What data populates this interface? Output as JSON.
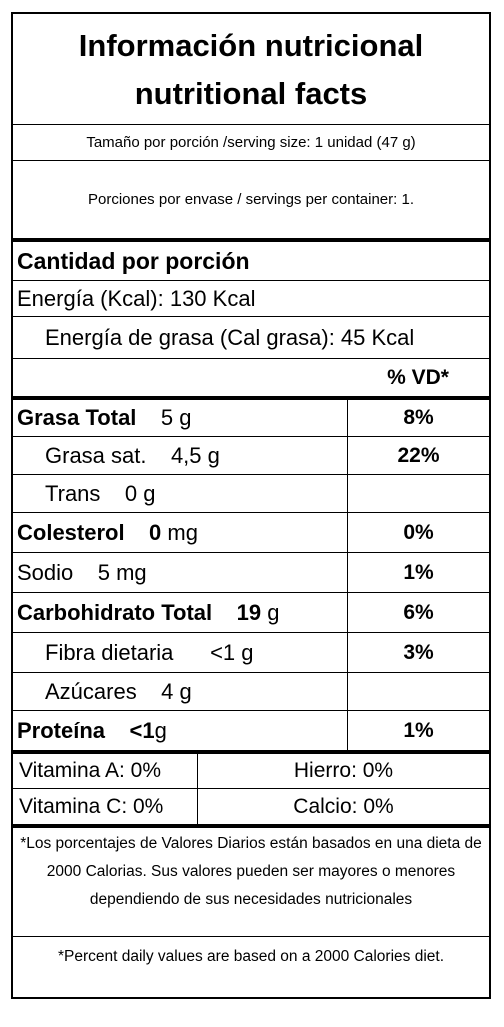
{
  "title": {
    "line1": "Información nutricional",
    "line2": "nutritional facts"
  },
  "serving_size": "Tamaño por porción /serving size: 1 unidad (47 g)",
  "servings_per_container": "Porciones por envase / servings per container: 1.",
  "amount_header": "Cantidad por porción",
  "energy": "Energía (Kcal): 130 Kcal",
  "fat_energy": "Energía de grasa (Cal grasa): 45 Kcal",
  "dv_header": "% VD*",
  "nutrients": [
    {
      "name": "Grasa Total",
      "amount": "5 g",
      "dv": "8%"
    },
    {
      "name": "Grasa sat.",
      "amount": "4,5 g",
      "dv": "22%"
    },
    {
      "name": "Trans",
      "amount": "0 g",
      "dv": ""
    },
    {
      "name": "Colesterol",
      "amount_bold": "0",
      "amount_unit": "mg",
      "dv": "0%"
    },
    {
      "name": "Sodio",
      "amount": "5 mg",
      "dv": "1%"
    },
    {
      "name": "Carbohidrato Total",
      "amount_bold": "19",
      "amount_unit": "g",
      "dv": "6%"
    },
    {
      "name": "Fibra dietaria",
      "amount": "<1 g",
      "dv": "3%"
    },
    {
      "name": "Azúcares",
      "amount": "4 g",
      "dv": ""
    },
    {
      "name": "Proteína",
      "amount_bold": "<1",
      "amount_unit": "g",
      "dv": "1%"
    }
  ],
  "vitamins": [
    {
      "left": "Vitamina A: 0%",
      "right": "Hierro: 0%"
    },
    {
      "left": "Vitamina C: 0%",
      "right": "Calcio: 0%"
    }
  ],
  "footnote_es": "*Los porcentajes de Valores Diarios están basados en una dieta de 2000 Calorias. Sus valores pueden ser mayores o menores dependiendo de sus necesidades nutricionales",
  "footnote_en": "*Percent daily values are based on a 2000 Calories diet."
}
